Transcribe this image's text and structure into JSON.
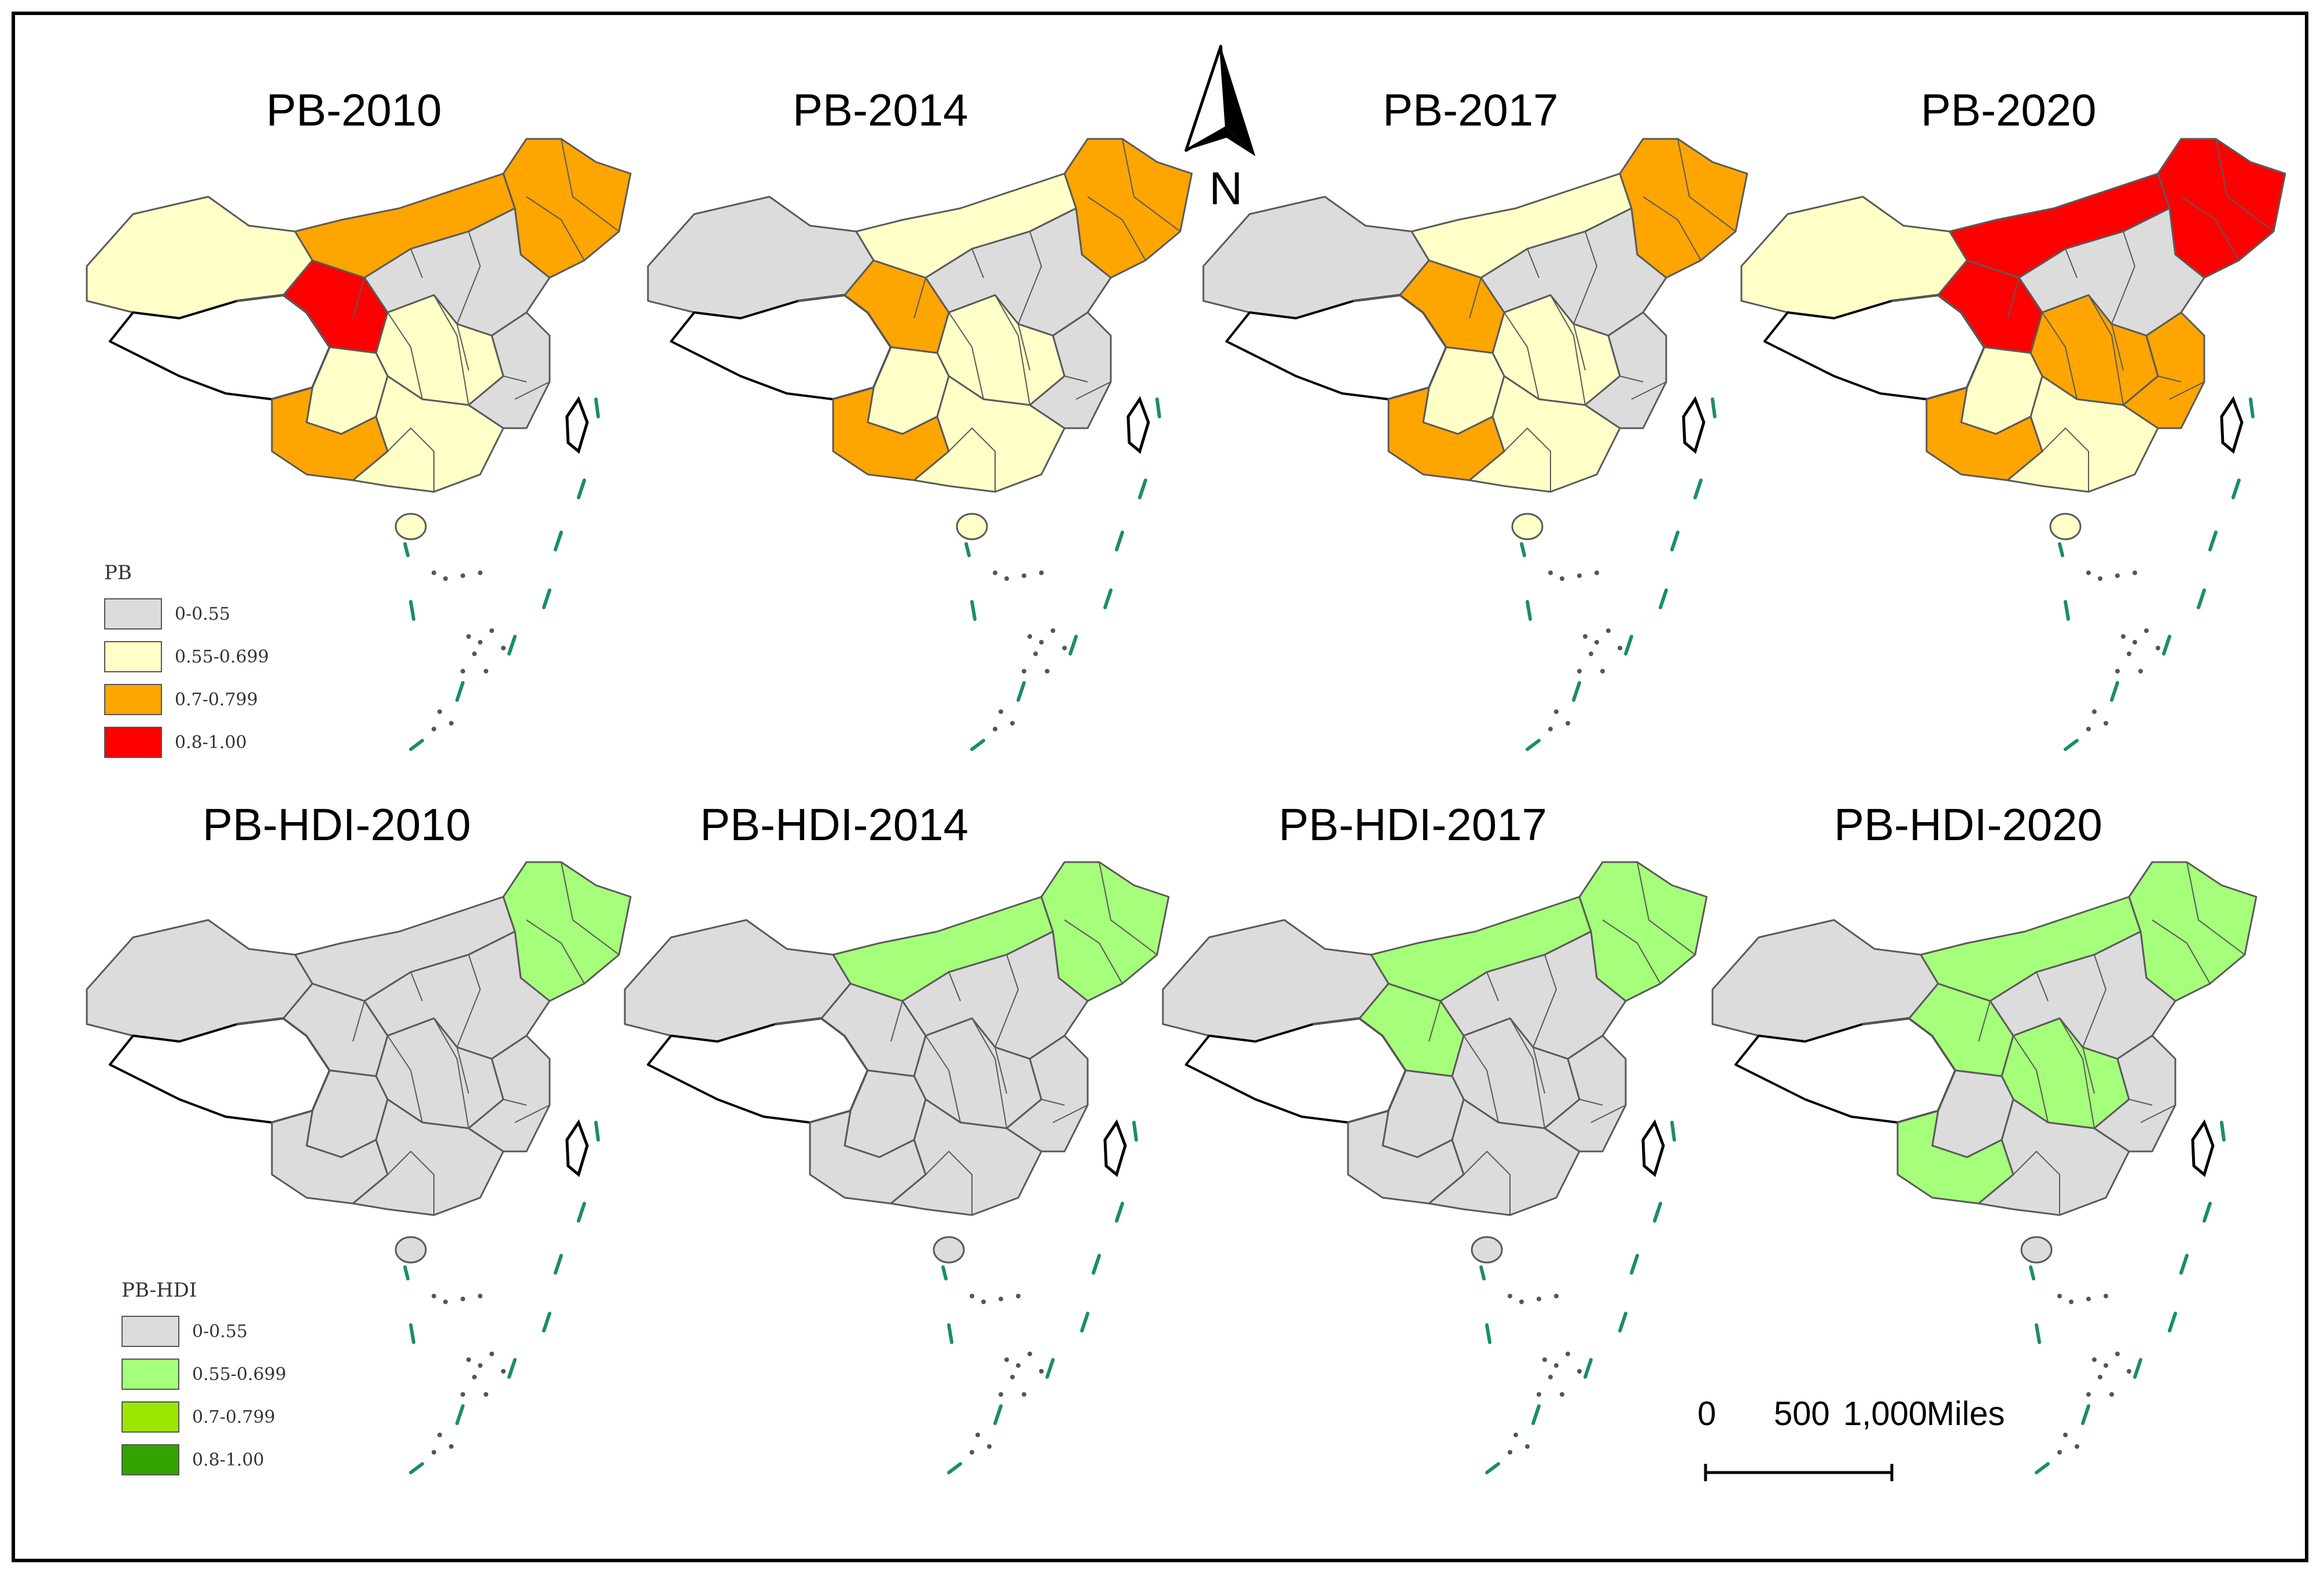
{
  "colors": {
    "gray": "#dcdcdc",
    "pale_yellow": "#ffffc8",
    "orange": "#ffa500",
    "red": "#ff0000",
    "light_green": "#a5ff7a",
    "lime": "#9ce600",
    "green": "#33a300",
    "tibet_white": "#ffffff",
    "border": "#5a5a5a",
    "island_teal": "#1b8c6e"
  },
  "panels": [
    {
      "title": "PB-2010",
      "scheme": "pb",
      "regions": {
        "xinjiang": "pale_yellow",
        "tibet": "tibet_white",
        "qinghai": "red",
        "gansu_nmg": "orange",
        "northeast": "orange",
        "north_china": "gray",
        "central": "pale_yellow",
        "sichuan": "pale_yellow",
        "southwest": "orange",
        "south": "pale_yellow",
        "east_coast": "gray"
      }
    },
    {
      "title": "PB-2014",
      "scheme": "pb",
      "regions": {
        "xinjiang": "gray",
        "tibet": "tibet_white",
        "qinghai": "orange",
        "gansu_nmg": "pale_yellow",
        "northeast": "orange",
        "north_china": "gray",
        "central": "pale_yellow",
        "sichuan": "pale_yellow",
        "southwest": "orange",
        "south": "pale_yellow",
        "east_coast": "gray"
      }
    },
    {
      "title": "PB-2017",
      "scheme": "pb",
      "regions": {
        "xinjiang": "gray",
        "tibet": "tibet_white",
        "qinghai": "orange",
        "gansu_nmg": "pale_yellow",
        "northeast": "orange",
        "north_china": "gray",
        "central": "pale_yellow",
        "sichuan": "pale_yellow",
        "southwest": "orange",
        "south": "pale_yellow",
        "east_coast": "gray"
      }
    },
    {
      "title": "PB-2020",
      "scheme": "pb",
      "regions": {
        "xinjiang": "pale_yellow",
        "tibet": "tibet_white",
        "qinghai": "red",
        "gansu_nmg": "red",
        "northeast": "red",
        "north_china": "gray",
        "central": "orange",
        "sichuan": "pale_yellow",
        "southwest": "orange",
        "south": "pale_yellow",
        "east_coast": "orange"
      }
    },
    {
      "title": "PB-HDI-2010",
      "scheme": "pbhdi",
      "regions": {
        "xinjiang": "gray",
        "tibet": "tibet_white",
        "qinghai": "gray",
        "gansu_nmg": "gray",
        "northeast": "light_green",
        "north_china": "gray",
        "central": "gray",
        "sichuan": "gray",
        "southwest": "gray",
        "south": "gray",
        "east_coast": "gray"
      }
    },
    {
      "title": "PB-HDI-2014",
      "scheme": "pbhdi",
      "regions": {
        "xinjiang": "gray",
        "tibet": "tibet_white",
        "qinghai": "gray",
        "gansu_nmg": "light_green",
        "northeast": "light_green",
        "north_china": "gray",
        "central": "gray",
        "sichuan": "gray",
        "southwest": "gray",
        "south": "gray",
        "east_coast": "gray"
      }
    },
    {
      "title": "PB-HDI-2017",
      "scheme": "pbhdi",
      "regions": {
        "xinjiang": "gray",
        "tibet": "tibet_white",
        "qinghai": "light_green",
        "gansu_nmg": "light_green",
        "northeast": "light_green",
        "north_china": "gray",
        "central": "gray",
        "sichuan": "gray",
        "southwest": "gray",
        "south": "gray",
        "east_coast": "gray"
      }
    },
    {
      "title": "PB-HDI-2020",
      "scheme": "pbhdi",
      "regions": {
        "xinjiang": "gray",
        "tibet": "tibet_white",
        "qinghai": "light_green",
        "gansu_nmg": "light_green",
        "northeast": "light_green",
        "north_china": "gray",
        "central": "light_green",
        "sichuan": "gray",
        "southwest": "light_green",
        "south": "gray",
        "east_coast": "gray"
      }
    }
  ],
  "legend_pb": {
    "title": "PB",
    "items": [
      {
        "label": "0-0.55",
        "color": "#dcdcdc"
      },
      {
        "label": "0.55-0.699",
        "color": "#ffffc8"
      },
      {
        "label": "0.7-0.799",
        "color": "#ffa500"
      },
      {
        "label": "0.8-1.00",
        "color": "#ff0000"
      }
    ]
  },
  "legend_pbhdi": {
    "title": "PB-HDI",
    "items": [
      {
        "label": "0-0.55",
        "color": "#dcdcdc"
      },
      {
        "label": "0.55-0.699",
        "color": "#a5ff7a"
      },
      {
        "label": "0.7-0.799",
        "color": "#9ce600"
      },
      {
        "label": "0.8-1.00",
        "color": "#33a300"
      }
    ]
  },
  "north_arrow": {
    "label": "N"
  },
  "scale_bar": {
    "ticks": [
      "0",
      "500",
      "1,000"
    ],
    "unit": "Miles"
  }
}
